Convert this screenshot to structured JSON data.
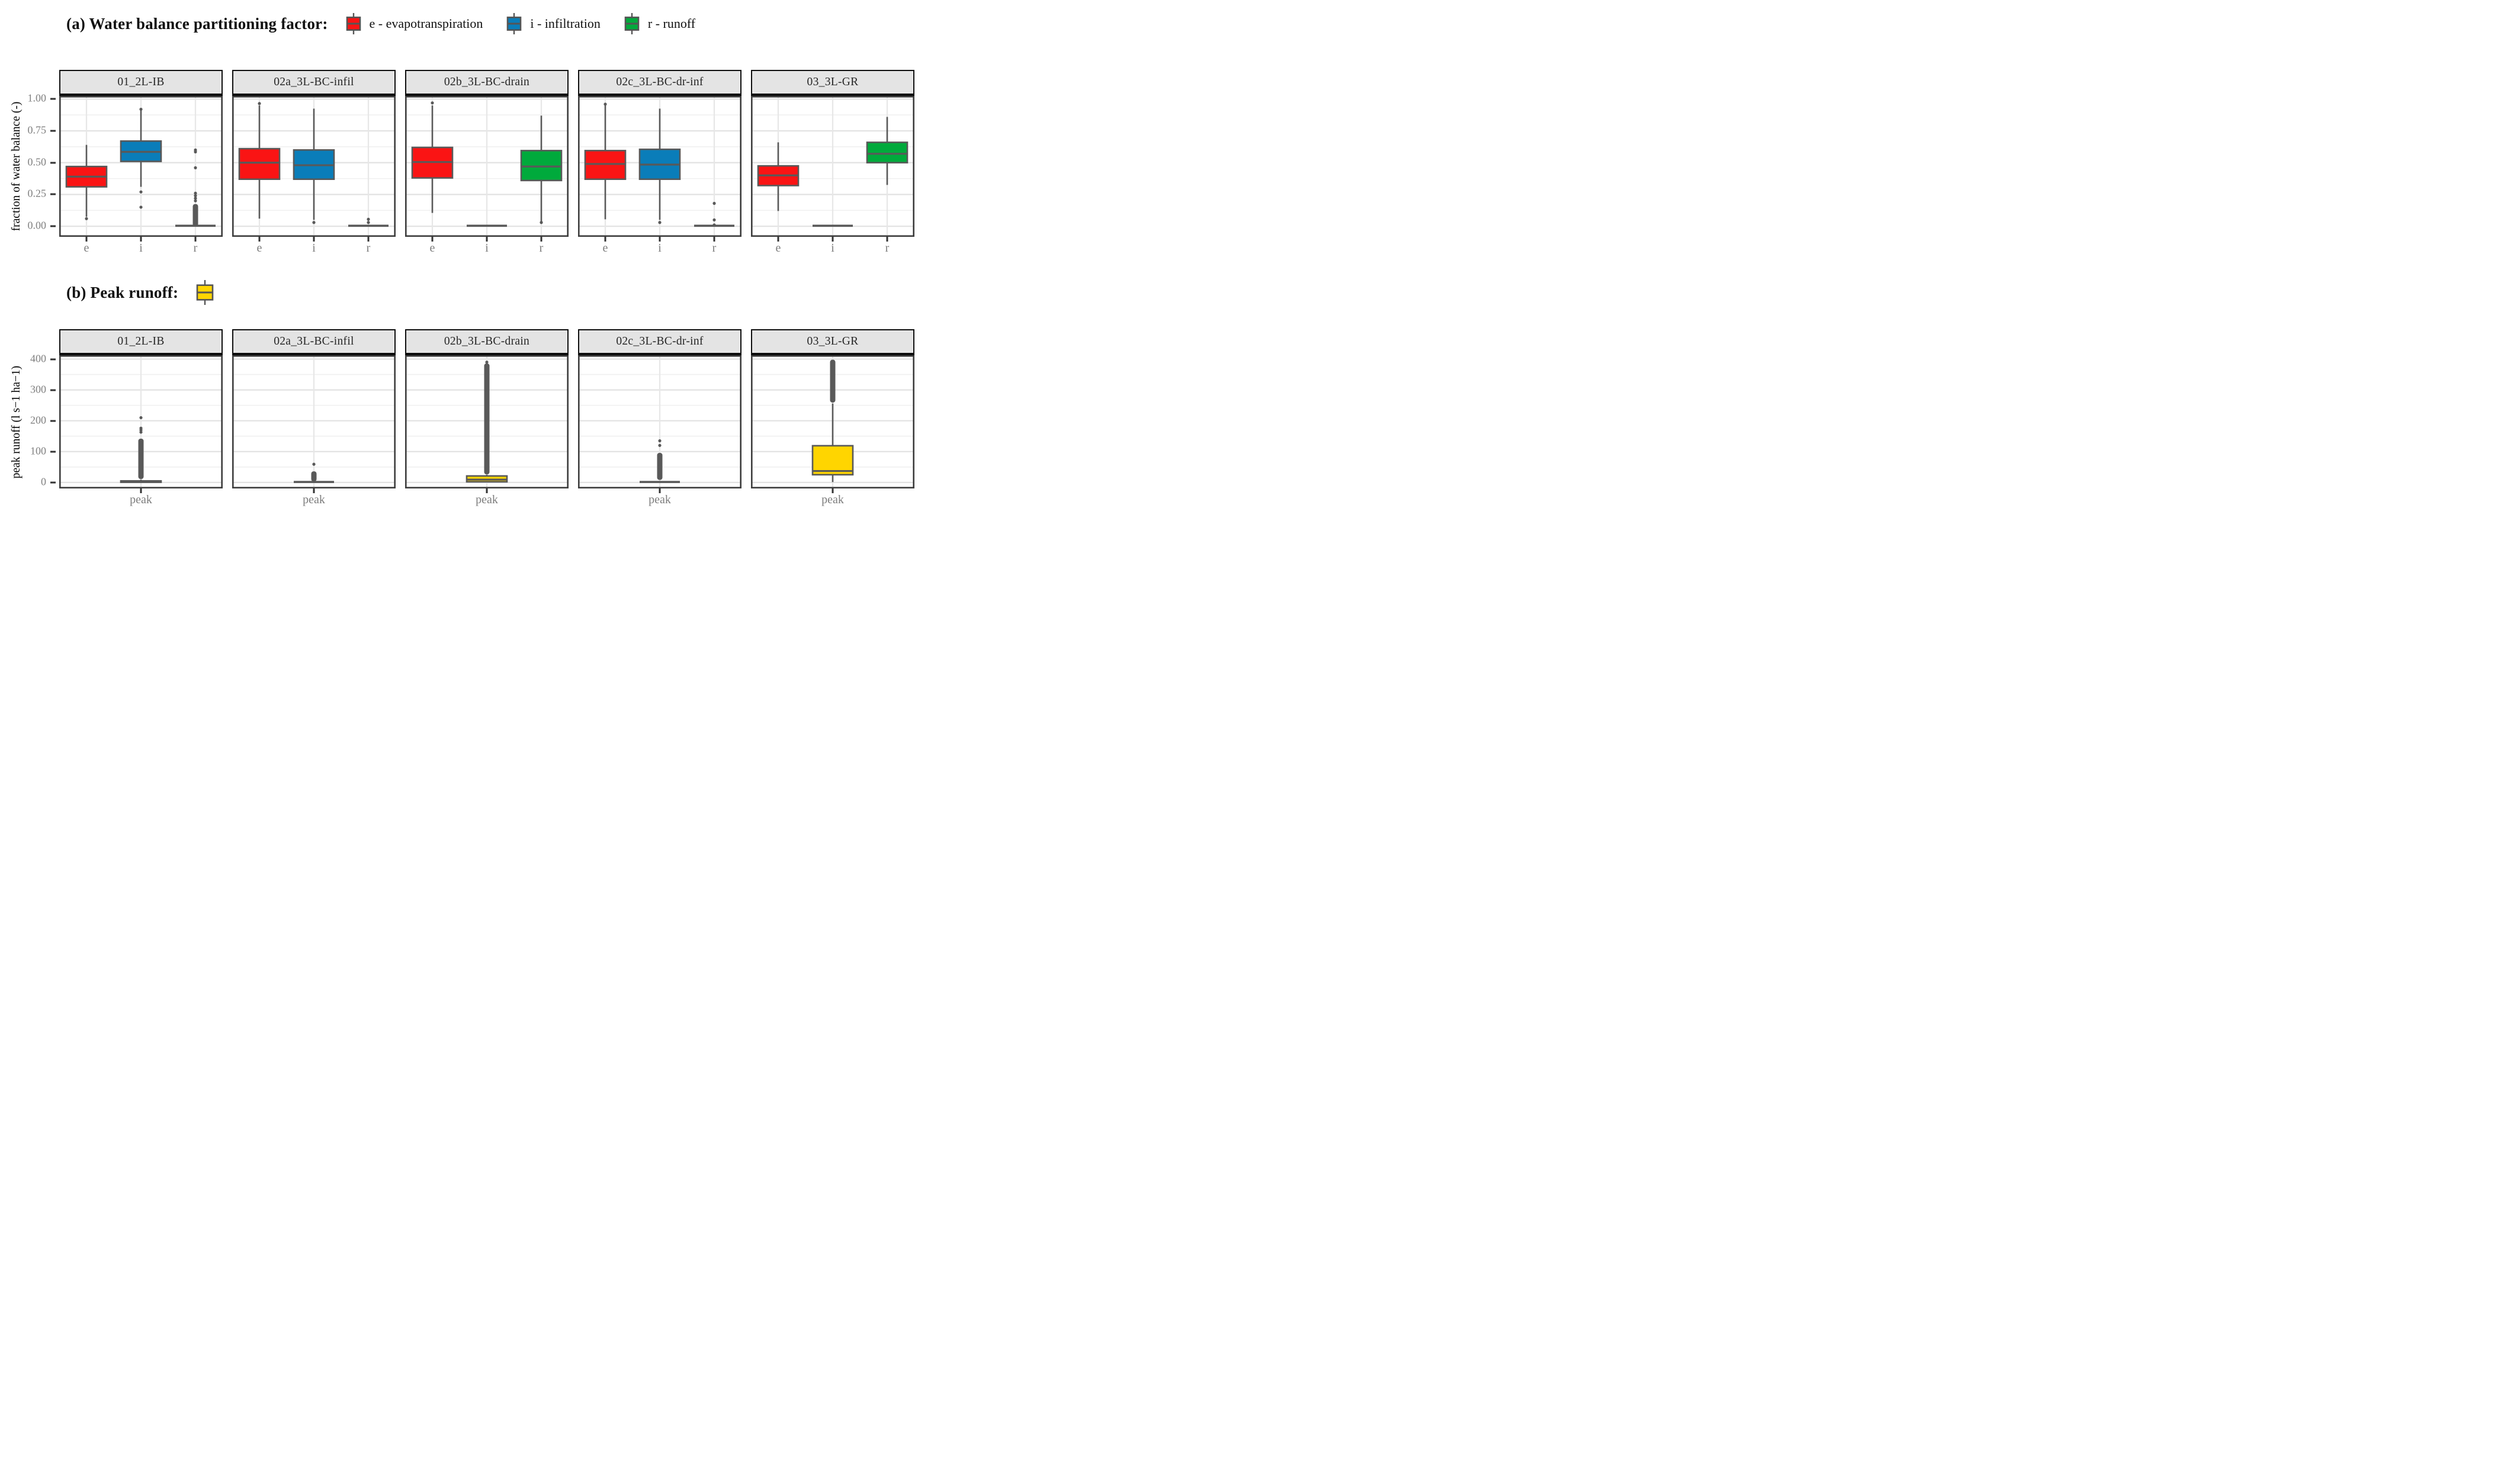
{
  "chart_data": [
    {
      "id": "a",
      "type": "boxplot",
      "title": "(a) Water balance partitioning factor:",
      "ylabel": "fraction of water balance (-)",
      "categories": [
        "e",
        "i",
        "r"
      ],
      "legend": [
        {
          "key": "e",
          "label": "e - evapotranspiration",
          "color": "#fa1414"
        },
        {
          "key": "i",
          "label": "i - infiltration",
          "color": "#0a7db9"
        },
        {
          "key": "r",
          "label": "r - runoff",
          "color": "#00aa3c"
        }
      ],
      "axis": {
        "ylim": [
          -0.083,
          1.025
        ],
        "major": [
          0,
          0.25,
          0.5,
          0.75,
          1.0
        ],
        "labels": [
          "0.00",
          "0.25",
          "0.50",
          "0.75",
          "1.00"
        ],
        "minor": [
          0.125,
          0.375,
          0.625,
          0.875
        ],
        "grid": true,
        "legend_position": "top"
      },
      "facets": [
        {
          "label": "01_2L-IB",
          "boxes": [
            {
              "cat": "e",
              "series": "e",
              "lo": 0.075,
              "q1": 0.31,
              "med": 0.39,
              "q3": 0.47,
              "hi": 0.64,
              "outliers": [
                0.06
              ]
            },
            {
              "cat": "i",
              "series": "i",
              "lo": 0.31,
              "q1": 0.51,
              "med": 0.585,
              "q3": 0.67,
              "hi": 0.91,
              "outliers": [
                0.92,
                0.27,
                0.15
              ]
            },
            {
              "cat": "r",
              "series": "r",
              "flat": true,
              "lo": 0.004,
              "q1": 0.004,
              "med": 0.004,
              "q3": 0.004,
              "hi": 0.004,
              "outliers": [
                0.6,
                0.585,
                0.46,
                0.26,
                0.24,
                0.22,
                0.2
              ],
              "outlier_column": [
                0.0,
                0.175
              ]
            }
          ]
        },
        {
          "label": "02a_3L-BC-infil",
          "boxes": [
            {
              "cat": "e",
              "series": "e",
              "lo": 0.06,
              "q1": 0.37,
              "med": 0.5,
              "q3": 0.61,
              "hi": 0.95,
              "outliers": [
                0.965
              ]
            },
            {
              "cat": "i",
              "series": "i",
              "lo": 0.05,
              "q1": 0.37,
              "med": 0.48,
              "q3": 0.6,
              "hi": 0.925,
              "outliers": [
                0.03
              ]
            },
            {
              "cat": "r",
              "series": "r",
              "flat": true,
              "lo": 0.004,
              "q1": 0.004,
              "med": 0.004,
              "q3": 0.004,
              "hi": 0.004,
              "outliers": [
                0.055,
                0.03
              ]
            }
          ]
        },
        {
          "label": "02b_3L-BC-drain",
          "boxes": [
            {
              "cat": "e",
              "series": "e",
              "lo": 0.105,
              "q1": 0.38,
              "med": 0.505,
              "q3": 0.62,
              "hi": 0.95,
              "outliers": [
                0.97
              ]
            },
            {
              "cat": "i",
              "series": "i",
              "flat": true,
              "lo": 0.004,
              "q1": 0.004,
              "med": 0.004,
              "q3": 0.004,
              "hi": 0.004,
              "outliers": []
            },
            {
              "cat": "r",
              "series": "r",
              "lo": 0.04,
              "q1": 0.36,
              "med": 0.47,
              "q3": 0.595,
              "hi": 0.87,
              "outliers": [
                0.03
              ]
            }
          ]
        },
        {
          "label": "02c_3L-BC-dr-inf",
          "boxes": [
            {
              "cat": "e",
              "series": "e",
              "lo": 0.055,
              "q1": 0.37,
              "med": 0.49,
              "q3": 0.595,
              "hi": 0.95,
              "outliers": [
                0.96
              ]
            },
            {
              "cat": "i",
              "series": "i",
              "lo": 0.05,
              "q1": 0.37,
              "med": 0.485,
              "q3": 0.605,
              "hi": 0.925,
              "outliers": [
                0.03
              ]
            },
            {
              "cat": "r",
              "series": "r",
              "flat": true,
              "lo": 0.004,
              "q1": 0.004,
              "med": 0.004,
              "q3": 0.004,
              "hi": 0.004,
              "outliers": [
                0.18,
                0.05,
                0.01
              ]
            }
          ]
        },
        {
          "label": "03_3L-GR",
          "boxes": [
            {
              "cat": "e",
              "series": "e",
              "lo": 0.12,
              "q1": 0.32,
              "med": 0.4,
              "q3": 0.475,
              "hi": 0.66,
              "outliers": []
            },
            {
              "cat": "i",
              "series": "i",
              "flat": true,
              "lo": 0.004,
              "q1": 0.004,
              "med": 0.004,
              "q3": 0.004,
              "hi": 0.004,
              "outliers": []
            },
            {
              "cat": "r",
              "series": "r",
              "lo": 0.325,
              "q1": 0.5,
              "med": 0.57,
              "q3": 0.66,
              "hi": 0.86,
              "outliers": []
            }
          ]
        }
      ]
    },
    {
      "id": "b",
      "type": "boxplot",
      "title": "(b) Peak runoff:",
      "ylabel": "peak runoff (l s−1 ha−1)",
      "categories": [
        "peak"
      ],
      "legend": [
        {
          "key": "peak",
          "label": "",
          "color": "#ffd500"
        }
      ],
      "axis": {
        "ylim": [
          -19.5,
          412.5
        ],
        "major": [
          0,
          100,
          200,
          300,
          400
        ],
        "labels": [
          "0",
          "100",
          "200",
          "300",
          "400"
        ],
        "minor": [
          50,
          150,
          250,
          350
        ],
        "grid": true,
        "legend_position": "top"
      },
      "facets": [
        {
          "label": "01_2L-IB",
          "boxes": [
            {
              "cat": "peak",
              "series": "peak",
              "lo": 0,
              "q1": 0.5,
              "med": 2,
              "q3": 5,
              "hi": 9,
              "outliers": [
                210,
                176,
                170,
                163
              ],
              "outlier_column": [
                11,
                142
              ]
            }
          ]
        },
        {
          "label": "02a_3L-BC-infil",
          "boxes": [
            {
              "cat": "peak",
              "series": "peak",
              "flat": true,
              "lo": 1.5,
              "q1": 1.5,
              "med": 1.5,
              "q3": 1.5,
              "hi": 1.5,
              "outliers": [
                59
              ],
              "outlier_column": [
                3,
                36
              ]
            }
          ]
        },
        {
          "label": "02b_3L-BC-drain",
          "boxes": [
            {
              "cat": "peak",
              "series": "peak",
              "lo": 0,
              "q1": 2,
              "med": 9,
              "q3": 21,
              "hi": 25,
              "outliers": [
                390
              ],
              "outlier_column": [
                26,
                386
              ]
            }
          ]
        },
        {
          "label": "02c_3L-BC-dr-inf",
          "boxes": [
            {
              "cat": "peak",
              "series": "peak",
              "flat": true,
              "lo": 1.5,
              "q1": 1.5,
              "med": 1.5,
              "q3": 1.5,
              "hi": 1.5,
              "outliers": [
                135,
                120
              ],
              "outlier_column": [
                8,
                96
              ]
            }
          ]
        },
        {
          "label": "03_3L-GR",
          "boxes": [
            {
              "cat": "peak",
              "series": "peak",
              "lo": 1,
              "q1": 25,
              "med": 37,
              "q3": 119,
              "hi": 256,
              "outliers": [],
              "outlier_column": [
                259,
                398
              ]
            }
          ]
        }
      ]
    }
  ],
  "style": {
    "box_stroke": "#595959",
    "outlier_color": "#595959",
    "strip_bg": "#e4e4e4",
    "grid_major": "#e2e2e2",
    "grid_minor": "#f0f0f0",
    "grid_vertical": "#e7e7e7",
    "panel_border": "#3d3d3d",
    "tick_text": "#808080"
  }
}
